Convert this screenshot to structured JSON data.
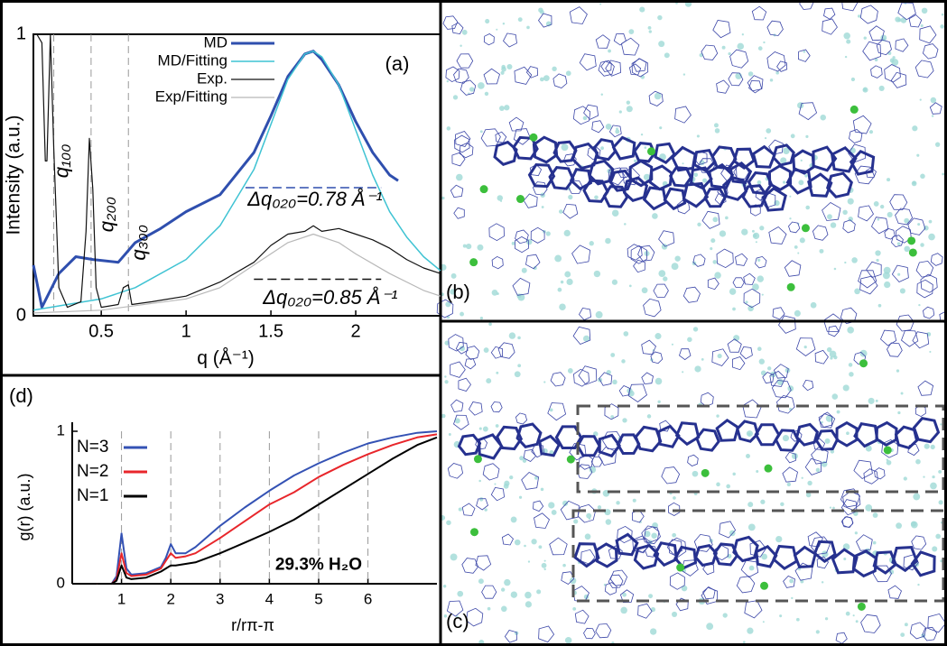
{
  "chart_data": [
    {
      "type": "line",
      "title": "(a)",
      "xlabel": "q (Å⁻¹)",
      "ylabel": "Intensity (a.u.)",
      "xlim": [
        0.1,
        2.5
      ],
      "ylim": [
        0,
        1
      ],
      "xticks": [
        0.5,
        1,
        1.5,
        2
      ],
      "yticks": [
        0,
        1
      ],
      "frame": true,
      "legend": "upper right",
      "vlines": [
        0.22,
        0.44,
        0.66
      ],
      "series": [
        {
          "name": "MD",
          "color": "#2f4fae",
          "width": 3,
          "x": [
            0.1,
            0.15,
            0.25,
            0.35,
            0.45,
            0.6,
            0.7,
            0.85,
            1.0,
            1.2,
            1.4,
            1.5,
            1.6,
            1.7,
            1.75,
            1.8,
            1.9,
            2.0,
            2.1,
            2.2,
            2.25
          ],
          "values": [
            0.18,
            0.03,
            0.15,
            0.21,
            0.2,
            0.19,
            0.26,
            0.31,
            0.37,
            0.43,
            0.58,
            0.71,
            0.85,
            0.93,
            0.94,
            0.91,
            0.82,
            0.69,
            0.58,
            0.5,
            0.48
          ]
        },
        {
          "name": "MD/Fitting",
          "color": "#3fc3d3",
          "width": 1.5,
          "x": [
            0.1,
            0.3,
            0.5,
            0.7,
            1.0,
            1.2,
            1.4,
            1.5,
            1.6,
            1.7,
            1.75,
            1.8,
            1.9,
            2.0,
            2.1,
            2.2,
            2.3,
            2.4,
            2.5
          ],
          "values": [
            0.02,
            0.04,
            0.06,
            0.1,
            0.2,
            0.32,
            0.52,
            0.68,
            0.84,
            0.93,
            0.94,
            0.92,
            0.82,
            0.66,
            0.5,
            0.37,
            0.28,
            0.21,
            0.16
          ]
        },
        {
          "name": "Exp.",
          "color": "#111111",
          "width": 1.2,
          "x": [
            0.12,
            0.15,
            0.17,
            0.18,
            0.2,
            0.22,
            0.25,
            0.3,
            0.38,
            0.41,
            0.43,
            0.45,
            0.47,
            0.5,
            0.6,
            0.63,
            0.66,
            0.68,
            0.8,
            1.0,
            1.2,
            1.4,
            1.5,
            1.6,
            1.7,
            1.75,
            1.8,
            1.9,
            2.0,
            2.1,
            2.2,
            2.3,
            2.4,
            2.5
          ],
          "values": [
            1.0,
            0.97,
            0.55,
            0.55,
            1.0,
            0.6,
            0.1,
            0.03,
            0.05,
            0.3,
            0.63,
            0.45,
            0.1,
            0.03,
            0.04,
            0.1,
            0.11,
            0.04,
            0.05,
            0.07,
            0.12,
            0.19,
            0.25,
            0.29,
            0.3,
            0.32,
            0.3,
            0.31,
            0.29,
            0.27,
            0.24,
            0.2,
            0.17,
            0.15
          ]
        },
        {
          "name": "Exp/Fitting",
          "color": "#b8b8b8",
          "width": 1.2,
          "x": [
            0.1,
            0.5,
            1.0,
            1.2,
            1.4,
            1.6,
            1.75,
            1.9,
            2.0,
            2.2,
            2.4,
            2.5
          ],
          "values": [
            0.01,
            0.02,
            0.06,
            0.1,
            0.18,
            0.26,
            0.29,
            0.26,
            0.22,
            0.15,
            0.09,
            0.07
          ]
        }
      ],
      "hlines": [
        {
          "y": 0.455,
          "x": [
            1.35,
            2.15
          ],
          "color": "#2f4fae"
        },
        {
          "y": 0.13,
          "x": [
            1.4,
            2.15
          ],
          "color": "#111111"
        }
      ],
      "annotations": [
        {
          "text": "q₁₀₀",
          "x": 0.275,
          "y": 0.55,
          "rotate": -90,
          "color": "#111111"
        },
        {
          "text": "q₂₀₀",
          "x": 0.54,
          "y": 0.36,
          "rotate": -90,
          "color": "#111111"
        },
        {
          "text": "q₃₀₀",
          "x": 0.73,
          "y": 0.26,
          "rotate": -90,
          "color": "#111111"
        },
        {
          "text": "Δq₀₂₀=0.78 Å⁻¹",
          "x": 1.76,
          "y": 0.41,
          "rotate": 0,
          "color": "#2f4fae"
        },
        {
          "text": "Δq₀₂₀=0.85 Å⁻¹",
          "x": 1.85,
          "y": 0.06,
          "rotate": 0,
          "color": "#111111"
        }
      ]
    },
    {
      "type": "line",
      "title": "(d)",
      "xlabel": "r/rπ-π",
      "ylabel": "g(r) (a.u.)",
      "xlim": [
        0,
        7.4
      ],
      "ylim": [
        0,
        1
      ],
      "xticks": [
        1,
        2,
        3,
        4,
        5,
        6
      ],
      "yticks": [
        0,
        1
      ],
      "frame": false,
      "grid": "x",
      "legend": "upper left",
      "x": [
        0.5,
        0.8,
        0.9,
        1.0,
        1.1,
        1.2,
        1.5,
        1.8,
        1.9,
        2.0,
        2.1,
        2.3,
        2.5,
        3,
        3.5,
        4,
        4.5,
        5,
        5.5,
        6,
        6.5,
        7,
        7.4
      ],
      "series": [
        {
          "name": "N=3",
          "color": "#3452b4",
          "width": 2,
          "values": [
            0,
            0,
            0.05,
            0.33,
            0.1,
            0.06,
            0.07,
            0.11,
            0.17,
            0.26,
            0.2,
            0.2,
            0.24,
            0.38,
            0.5,
            0.61,
            0.71,
            0.79,
            0.86,
            0.92,
            0.96,
            0.99,
            1.0
          ]
        },
        {
          "name": "N=2",
          "color": "#e8262b",
          "width": 2,
          "values": [
            0,
            0,
            0.03,
            0.2,
            0.07,
            0.05,
            0.06,
            0.1,
            0.15,
            0.2,
            0.17,
            0.18,
            0.2,
            0.3,
            0.41,
            0.52,
            0.6,
            0.7,
            0.78,
            0.85,
            0.91,
            0.96,
            0.98
          ]
        },
        {
          "name": "N=1",
          "color": "#000000",
          "width": 2,
          "values": [
            0,
            0,
            0.02,
            0.12,
            0.04,
            0.03,
            0.04,
            0.08,
            0.1,
            0.12,
            0.12,
            0.13,
            0.14,
            0.2,
            0.27,
            0.34,
            0.42,
            0.52,
            0.62,
            0.72,
            0.82,
            0.91,
            0.96
          ]
        }
      ],
      "annotations": [
        {
          "text": "29.3% H₂O",
          "x": 5.0,
          "y": 0.12,
          "rotate": 0,
          "color": "#000000",
          "bold": true
        }
      ]
    }
  ],
  "panels": {
    "b": "(b)",
    "c": "(c)"
  }
}
